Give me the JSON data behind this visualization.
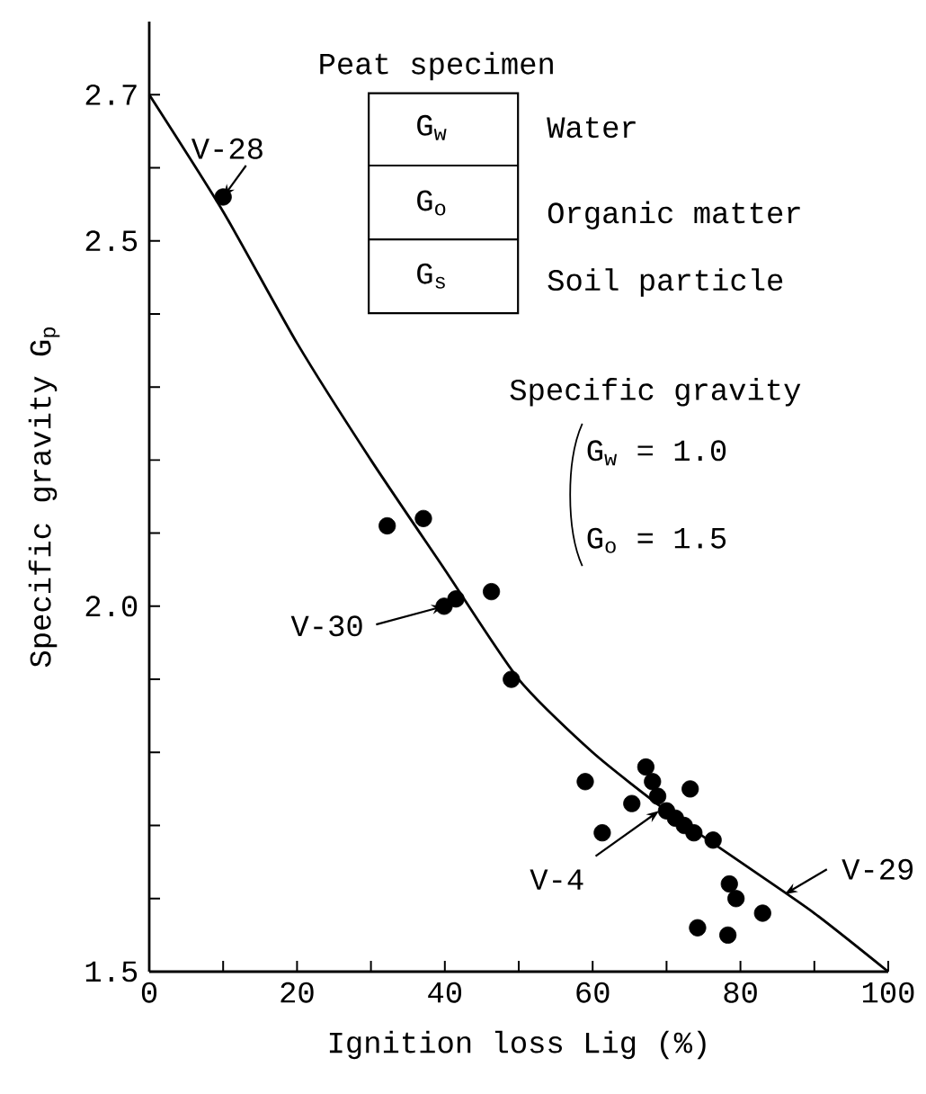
{
  "chart_data": {
    "type": "scatter",
    "xlabel": "Ignition loss  Lig (%)",
    "ylabel": "Specific gravity  G$_{p}$",
    "xlim": [
      0,
      100
    ],
    "ylim": [
      1.5,
      2.8
    ],
    "xticks": [
      0,
      {
        "value": 10,
        "label": null
      },
      20,
      {
        "value": 30,
        "label": null
      },
      40,
      {
        "value": 50,
        "label": null
      },
      60,
      {
        "value": 70,
        "label": null
      },
      80,
      {
        "value": 90,
        "label": null
      },
      100
    ],
    "yticks": [
      1.5,
      {
        "value": 1.6,
        "label": null
      },
      {
        "value": 1.7,
        "label": null
      },
      {
        "value": 1.8,
        "label": null
      },
      {
        "value": 1.9,
        "label": null
      },
      {
        "value": 2.0,
        "label": "2.0"
      },
      {
        "value": 2.1,
        "label": null
      },
      {
        "value": 2.2,
        "label": null
      },
      {
        "value": 2.3,
        "label": null
      },
      {
        "value": 2.4,
        "label": null
      },
      2.5,
      {
        "value": 2.6,
        "label": null
      },
      2.7
    ],
    "marker": "circle",
    "series": [
      {
        "color": "#000000",
        "x": [
          10.0,
          32.2,
          37.1,
          39.9,
          41.5,
          46.3,
          49.0,
          59.0,
          61.3,
          65.3,
          67.2,
          68.1,
          68.8,
          70.0,
          71.2,
          73.2,
          72.4,
          73.7,
          76.3,
          78.5,
          79.4,
          83.0,
          74.2,
          78.3
        ],
        "values": [
          2.56,
          2.11,
          2.12,
          2.0,
          2.01,
          2.02,
          1.9,
          1.76,
          1.69,
          1.73,
          1.78,
          1.76,
          1.74,
          1.72,
          1.71,
          1.75,
          1.7,
          1.69,
          1.68,
          1.62,
          1.6,
          1.58,
          1.56,
          1.55
        ]
      },
      {
        "type": "line",
        "marker": "none",
        "color": "#000000",
        "x": [
          0,
          10,
          20,
          30,
          40,
          50,
          60,
          70,
          80,
          90,
          100
        ],
        "values": [
          2.7,
          2.54,
          2.36,
          2.2,
          2.05,
          1.9,
          1.8,
          1.72,
          1.65,
          1.58,
          1.5
        ]
      }
    ],
    "annotations": [
      "Peat specimen",
      "G$_{w}$",
      "Water",
      "G$_{o}$",
      "Organic matter",
      "G$_{s}$",
      "Soil particle",
      "Specific gravity",
      "G$_{w}$ = 1.0",
      "G$_{o}$ = 1.5",
      {
        "text": "V-28",
        "x": 10.0,
        "y": 2.56
      },
      {
        "text": "V-30",
        "x": 39.9,
        "y": 2.0
      },
      {
        "text": "V-4",
        "x": 69.0,
        "y": 1.72
      },
      {
        "text": "V-29",
        "x": 86.0,
        "y": 1.606
      }
    ]
  }
}
